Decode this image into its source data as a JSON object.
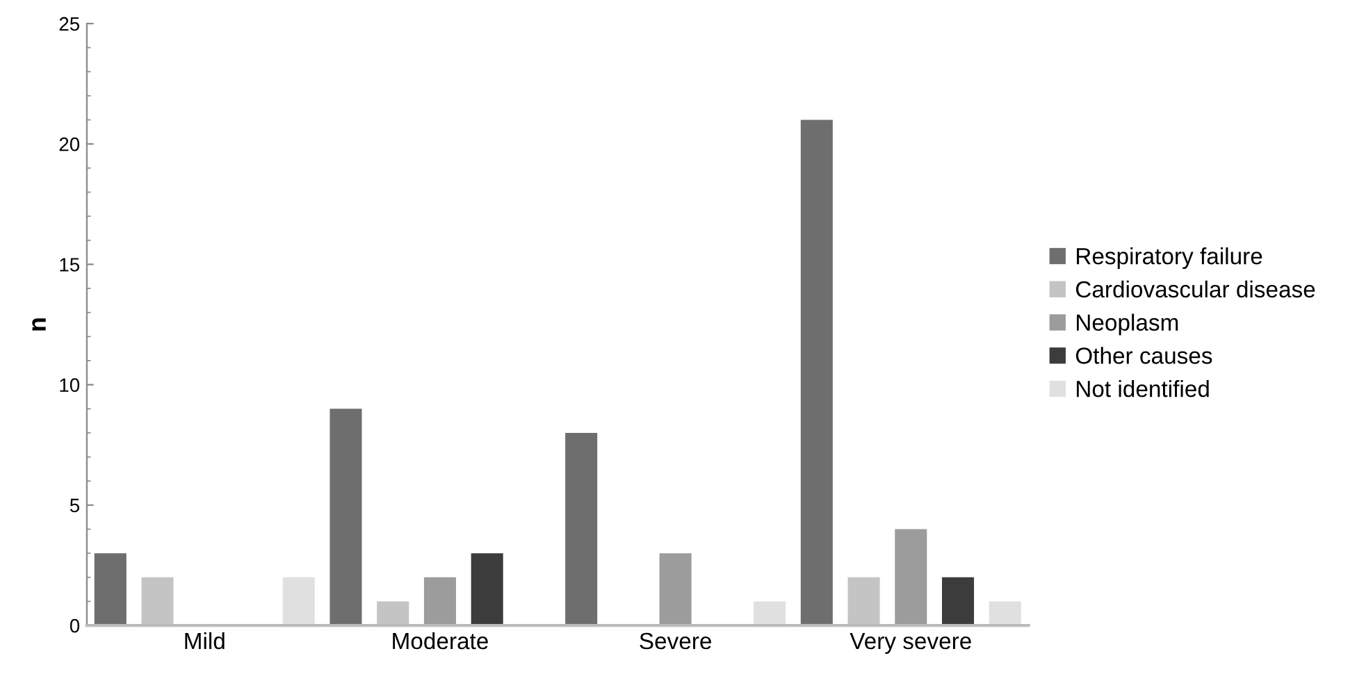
{
  "chart_data": {
    "type": "bar",
    "ylabel": "n",
    "categories": [
      "Mild",
      "Moderate",
      "Severe",
      "Very severe"
    ],
    "series": [
      {
        "name": "Respiratory failure",
        "color": "#6e6e6e",
        "values": [
          3,
          9,
          8,
          21
        ]
      },
      {
        "name": "Cardiovascular disease",
        "color": "#c4c4c4",
        "values": [
          2,
          1,
          0,
          2
        ]
      },
      {
        "name": "Neoplasm",
        "color": "#9c9c9c",
        "values": [
          0,
          2,
          3,
          4
        ]
      },
      {
        "name": "Other causes",
        "color": "#3c3c3c",
        "values": [
          0,
          3,
          0,
          2
        ]
      },
      {
        "name": "Not identified",
        "color": "#e0e0e0",
        "values": [
          2,
          0,
          1,
          1
        ]
      }
    ],
    "ylim": [
      0,
      25
    ],
    "yticks": [
      0,
      5,
      10,
      15,
      20,
      25
    ],
    "grid": false,
    "legend": "right"
  }
}
